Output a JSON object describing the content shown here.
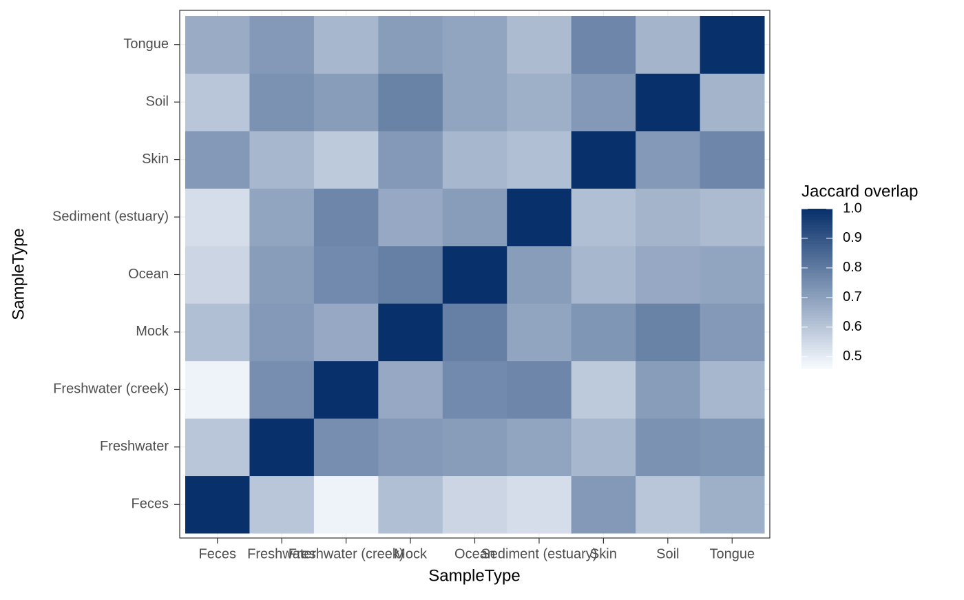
{
  "chart_data": {
    "type": "heatmap",
    "x_label": "SampleType",
    "y_label": "SampleType",
    "legend_title": "Jaccard overlap",
    "x_categories": [
      "Feces",
      "Freshwater",
      "Freshwater (creek)",
      "Mock",
      "Ocean",
      "Sediment (estuary)",
      "Skin",
      "Soil",
      "Tongue"
    ],
    "y_categories": [
      "Feces",
      "Freshwater",
      "Freshwater (creek)",
      "Mock",
      "Ocean",
      "Sediment (estuary)",
      "Skin",
      "Soil",
      "Tongue"
    ],
    "values": [
      [
        1.0,
        0.6,
        0.48,
        0.62,
        0.56,
        0.54,
        0.72,
        0.6,
        0.66
      ],
      [
        0.6,
        1.0,
        0.75,
        0.72,
        0.71,
        0.69,
        0.64,
        0.74,
        0.73
      ],
      [
        0.48,
        0.75,
        1.0,
        0.68,
        0.76,
        0.77,
        0.59,
        0.71,
        0.64
      ],
      [
        0.62,
        0.72,
        0.68,
        1.0,
        0.79,
        0.69,
        0.73,
        0.78,
        0.72
      ],
      [
        0.56,
        0.71,
        0.76,
        0.79,
        1.0,
        0.71,
        0.64,
        0.68,
        0.69
      ],
      [
        0.54,
        0.69,
        0.77,
        0.68,
        0.71,
        1.0,
        0.62,
        0.65,
        0.63
      ],
      [
        0.72,
        0.64,
        0.59,
        0.72,
        0.64,
        0.62,
        1.0,
        0.72,
        0.77
      ],
      [
        0.6,
        0.74,
        0.71,
        0.78,
        0.69,
        0.66,
        0.72,
        1.0,
        0.65
      ],
      [
        0.67,
        0.72,
        0.64,
        0.71,
        0.69,
        0.63,
        0.77,
        0.65,
        1.0
      ]
    ],
    "color_low": "#f7fbff",
    "color_high": "#08306b",
    "colorlim": [
      0.46,
      1.0
    ],
    "colorticks": [
      0.5,
      0.6,
      0.7,
      0.8,
      0.9,
      {
        "value": 1,
        "label": "1.0"
      }
    ],
    "grid": true
  }
}
